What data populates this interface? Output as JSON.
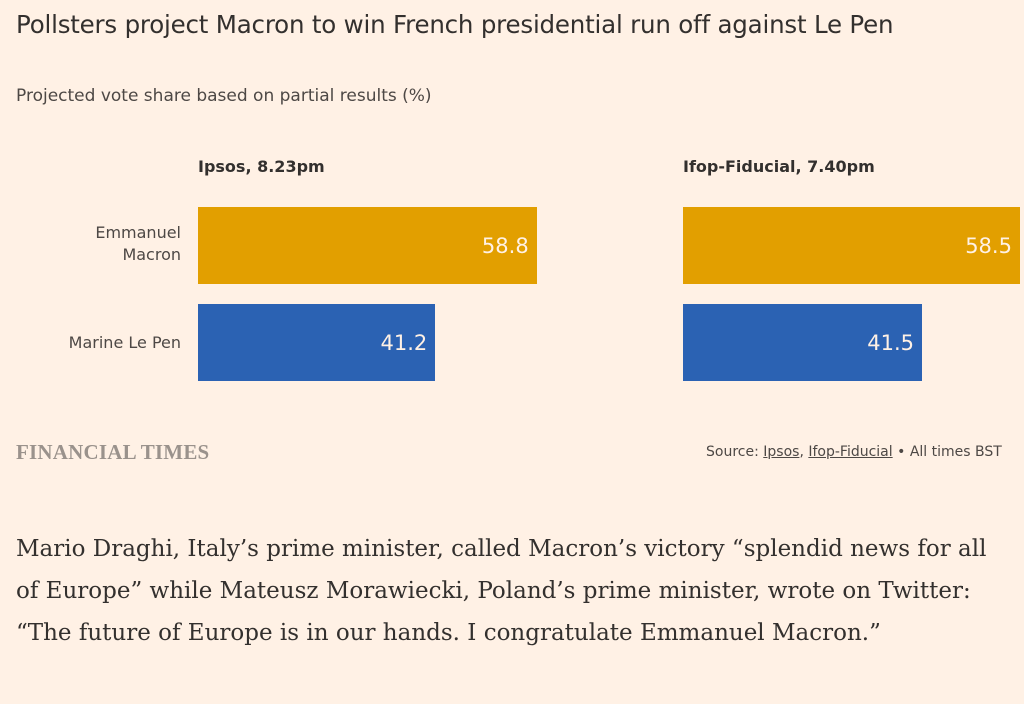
{
  "title": "Pollsters project Macron to win French presidential run off against Le Pen",
  "subtitle": "Projected vote share based on partial results (%)",
  "brand": "FINANCIAL TIMES",
  "source": {
    "prefix": "Source: ",
    "links": [
      "Ipsos",
      "Ifop-Fiducial"
    ],
    "separator": ", ",
    "suffix": " • All times BST"
  },
  "colors": {
    "background": "#fff1e5",
    "macron": "#e29f00",
    "le_pen": "#2b62b3",
    "value_text": "#fff1e5"
  },
  "chart_data": [
    {
      "type": "bar",
      "orientation": "horizontal",
      "title": "Ipsos, 8.23pm",
      "categories": [
        "Emmanuel Macron",
        "Marine Le Pen"
      ],
      "values": [
        58.8,
        41.2
      ],
      "value_labels": [
        "58.8",
        "41.2"
      ],
      "xlim": [
        0,
        60
      ],
      "xlabel": "",
      "ylabel": "",
      "grid": false
    },
    {
      "type": "bar",
      "orientation": "horizontal",
      "title": "Ifop-Fiducial, 7.40pm",
      "categories": [
        "Emmanuel Macron",
        "Marine Le Pen"
      ],
      "values": [
        58.5,
        41.5
      ],
      "value_labels": [
        "58.5",
        "41.5"
      ],
      "xlim": [
        0,
        60
      ],
      "xlabel": "",
      "ylabel": "",
      "grid": false
    }
  ],
  "category_labels": {
    "macron_line1": "Emmanuel",
    "macron_line2": "Macron",
    "le_pen": "Marine Le Pen"
  },
  "article": {
    "paragraph": "Mario Draghi, Italy’s prime minister, called Macron’s victory “splendid news for all of Europe” while Mateusz Morawiecki, Poland’s prime minister, wrote on Twitter: “The future of Europe is in our hands. I congratulate Emmanuel Macron.”"
  }
}
